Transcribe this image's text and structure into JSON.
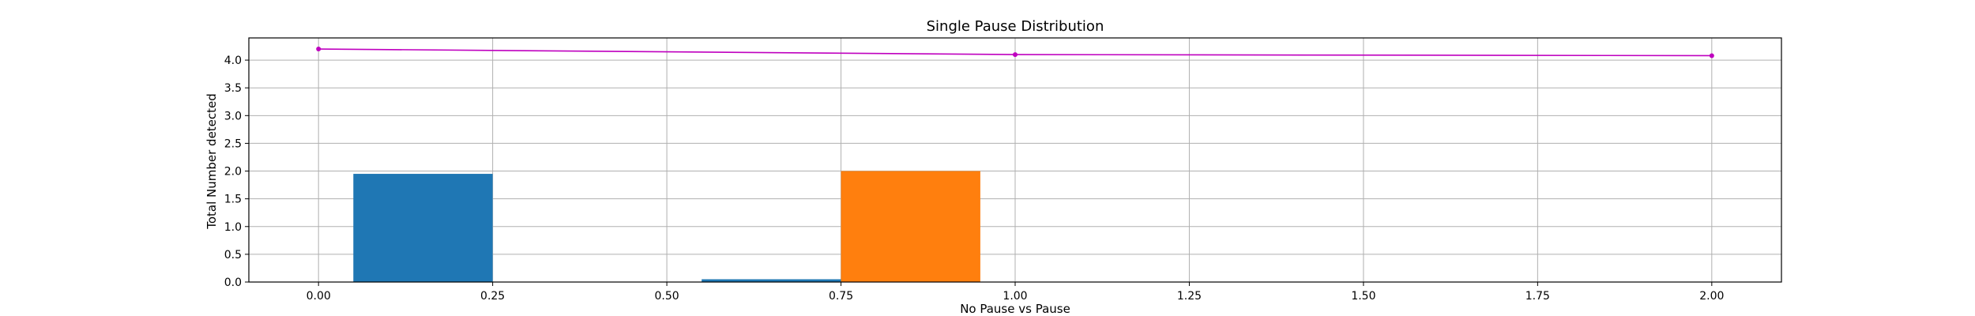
{
  "chart_data": {
    "type": "bar",
    "title": "Single Pause Distribution",
    "xlabel": "No Pause vs Pause",
    "ylabel": "Total Number detected",
    "xlim": [
      -0.1,
      2.1
    ],
    "ylim": [
      0,
      4.4
    ],
    "x_ticks": [
      0.0,
      0.25,
      0.5,
      0.75,
      1.0,
      1.25,
      1.5,
      1.75,
      2.0
    ],
    "x_tick_labels": [
      "0.00",
      "0.25",
      "0.50",
      "0.75",
      "1.00",
      "1.25",
      "1.50",
      "1.75",
      "2.00"
    ],
    "y_ticks": [
      0.0,
      0.5,
      1.0,
      1.5,
      2.0,
      2.5,
      3.0,
      3.5,
      4.0
    ],
    "y_tick_labels": [
      "0.0",
      "0.5",
      "1.0",
      "1.5",
      "2.0",
      "2.5",
      "3.0",
      "3.5",
      "4.0"
    ],
    "grid": true,
    "bars": [
      {
        "series": 0,
        "x_start": 0.05,
        "x_end": 0.25,
        "value": 1.95,
        "color": "#1f77b4"
      },
      {
        "series": 0,
        "x_start": 0.55,
        "x_end": 0.75,
        "value": 0.05,
        "color": "#1f77b4"
      },
      {
        "series": 1,
        "x_start": 0.75,
        "x_end": 0.95,
        "value": 2.0,
        "color": "#ff7f0e"
      }
    ],
    "line": {
      "color": "#bf00bf",
      "points": [
        {
          "x": 0.0,
          "y": 4.2
        },
        {
          "x": 1.0,
          "y": 4.1
        },
        {
          "x": 2.0,
          "y": 4.08
        }
      ]
    }
  }
}
